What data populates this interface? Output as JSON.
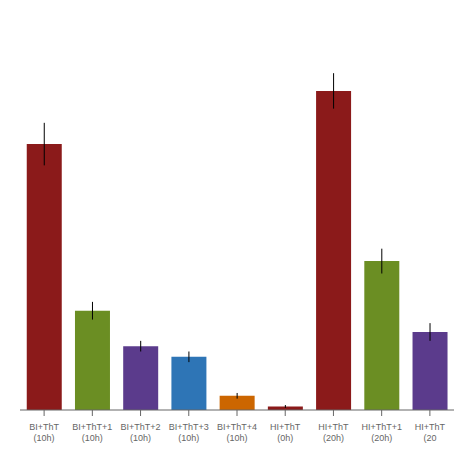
{
  "chart_data": {
    "type": "bar",
    "categories": [
      "BI+ThT\n(10h)",
      "BI+ThT+1\n(10h)",
      "BI+ThT+2\n(10h)",
      "BI+ThT+3\n(10h)",
      "BI+ThT+4\n(10h)",
      "HI+ThT\n(0h)",
      "HI+ThT\n(20h)",
      "HI+ThT+1\n(20h)",
      "HI+ThT\n(20"
    ],
    "values": [
      75,
      28,
      18,
      15,
      4,
      1,
      90,
      42,
      22
    ],
    "errors": [
      6,
      2.5,
      1.5,
      1.5,
      0.8,
      0.4,
      5,
      3.5,
      2.5
    ],
    "colors": [
      "#8B1A1A",
      "#6B8E23",
      "#5B3B8C",
      "#2E75B6",
      "#CC6600",
      "#8B1A1A",
      "#8B1A1A",
      "#6B8E23",
      "#5B3B8C"
    ],
    "ylim": [
      0,
      110
    ],
    "tick_labels": "x",
    "grid": false
  }
}
